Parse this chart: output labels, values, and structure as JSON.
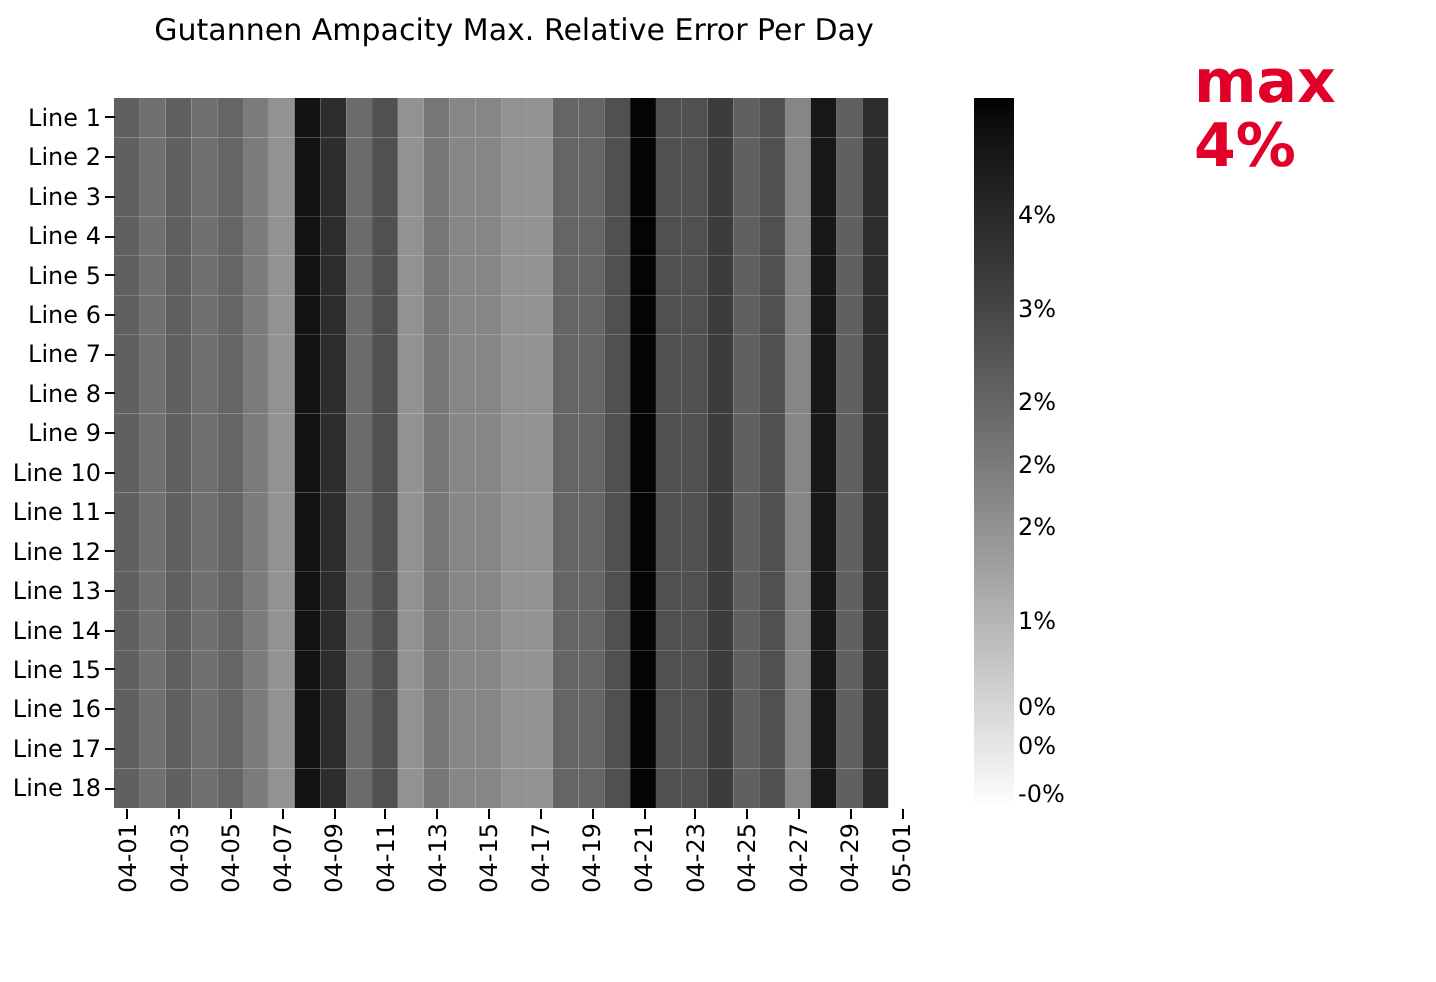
{
  "chart_data": {
    "type": "heatmap",
    "title": "Gutannen Ampacity Max. Relative Error Per Day",
    "categories": [
      "04-01",
      null,
      "04-03",
      null,
      "04-05",
      null,
      "04-07",
      null,
      "04-09",
      null,
      "04-11",
      null,
      "04-13",
      null,
      "04-15",
      null,
      "04-17",
      null,
      "04-19",
      null,
      "04-21",
      null,
      "04-23",
      null,
      "04-25",
      null,
      "04-27",
      null,
      "04-29",
      null,
      "05-01"
    ],
    "y_categories": [
      "Line 1",
      "Line 2",
      "Line 3",
      "Line 4",
      "Line 5",
      "Line 6",
      "Line 7",
      "Line 8",
      "Line 9",
      "Line 10",
      "Line 11",
      "Line 12",
      "Line 13",
      "Line 14",
      "Line 15",
      "Line 16",
      "Line 17",
      "Line 18"
    ],
    "cells": [
      [
        2.5,
        2.2,
        2.5,
        2.2,
        2.4,
        2.0,
        1.6,
        4.1,
        3.5,
        2.3,
        2.8,
        1.6,
        2.1,
        1.8,
        1.8,
        1.6,
        1.6,
        2.4,
        2.4,
        2.8,
        4.3,
        2.8,
        2.8,
        3.2,
        2.5,
        2.8,
        1.8,
        4.0,
        2.5,
        3.5,
        null
      ],
      [
        2.5,
        2.2,
        2.5,
        2.2,
        2.4,
        2.0,
        1.6,
        4.1,
        3.5,
        2.3,
        2.8,
        1.6,
        2.1,
        1.8,
        1.8,
        1.6,
        1.6,
        2.4,
        2.4,
        2.8,
        4.3,
        2.8,
        2.8,
        3.2,
        2.5,
        2.8,
        1.8,
        4.0,
        2.5,
        3.5,
        null
      ],
      [
        2.5,
        2.2,
        2.5,
        2.2,
        2.4,
        2.0,
        1.6,
        4.1,
        3.5,
        2.3,
        2.8,
        1.6,
        2.1,
        1.8,
        1.8,
        1.6,
        1.6,
        2.4,
        2.4,
        2.8,
        4.3,
        2.8,
        2.8,
        3.2,
        2.5,
        2.8,
        1.8,
        4.0,
        2.5,
        3.5,
        null
      ],
      [
        2.5,
        2.2,
        2.5,
        2.2,
        2.4,
        2.0,
        1.6,
        4.1,
        3.5,
        2.3,
        2.8,
        1.6,
        2.1,
        1.8,
        1.8,
        1.6,
        1.6,
        2.4,
        2.4,
        2.8,
        4.3,
        2.8,
        2.8,
        3.2,
        2.5,
        2.8,
        1.8,
        4.0,
        2.5,
        3.5,
        null
      ],
      [
        2.5,
        2.2,
        2.5,
        2.2,
        2.4,
        2.0,
        1.6,
        4.1,
        3.5,
        2.3,
        2.8,
        1.6,
        2.1,
        1.8,
        1.8,
        1.6,
        1.6,
        2.4,
        2.4,
        2.8,
        4.3,
        2.8,
        2.8,
        3.2,
        2.5,
        2.8,
        1.8,
        4.0,
        2.5,
        3.5,
        null
      ],
      [
        2.5,
        2.2,
        2.5,
        2.2,
        2.4,
        2.0,
        1.6,
        4.1,
        3.5,
        2.3,
        2.8,
        1.6,
        2.1,
        1.8,
        1.8,
        1.6,
        1.6,
        2.4,
        2.4,
        2.8,
        4.3,
        2.8,
        2.8,
        3.2,
        2.5,
        2.8,
        1.8,
        4.0,
        2.5,
        3.5,
        null
      ],
      [
        2.5,
        2.2,
        2.5,
        2.2,
        2.4,
        2.0,
        1.6,
        4.1,
        3.5,
        2.3,
        2.8,
        1.6,
        2.1,
        1.8,
        1.8,
        1.6,
        1.6,
        2.4,
        2.4,
        2.8,
        4.3,
        2.8,
        2.8,
        3.2,
        2.5,
        2.8,
        1.8,
        4.0,
        2.5,
        3.5,
        null
      ],
      [
        2.5,
        2.2,
        2.5,
        2.2,
        2.4,
        2.0,
        1.6,
        4.1,
        3.5,
        2.3,
        2.8,
        1.6,
        2.1,
        1.8,
        1.8,
        1.6,
        1.6,
        2.4,
        2.4,
        2.8,
        4.3,
        2.8,
        2.8,
        3.2,
        2.5,
        2.8,
        1.8,
        4.0,
        2.5,
        3.5,
        null
      ],
      [
        2.5,
        2.2,
        2.5,
        2.2,
        2.4,
        2.0,
        1.6,
        4.1,
        3.5,
        2.3,
        2.8,
        1.6,
        2.1,
        1.8,
        1.8,
        1.6,
        1.6,
        2.4,
        2.4,
        2.8,
        4.3,
        2.8,
        2.8,
        3.2,
        2.5,
        2.8,
        1.8,
        4.0,
        2.5,
        3.5,
        null
      ],
      [
        2.5,
        2.2,
        2.5,
        2.2,
        2.4,
        2.0,
        1.6,
        4.1,
        3.5,
        2.3,
        2.8,
        1.6,
        2.1,
        1.8,
        1.8,
        1.6,
        1.6,
        2.4,
        2.4,
        2.8,
        4.3,
        2.8,
        2.8,
        3.2,
        2.5,
        2.8,
        1.8,
        4.0,
        2.5,
        3.5,
        null
      ],
      [
        2.5,
        2.2,
        2.5,
        2.2,
        2.4,
        2.0,
        1.6,
        4.1,
        3.5,
        2.3,
        2.8,
        1.6,
        2.1,
        1.8,
        1.8,
        1.6,
        1.6,
        2.4,
        2.4,
        2.8,
        4.3,
        2.8,
        2.8,
        3.2,
        2.5,
        2.8,
        1.8,
        4.0,
        2.5,
        3.5,
        null
      ],
      [
        2.5,
        2.2,
        2.5,
        2.2,
        2.4,
        2.0,
        1.6,
        4.1,
        3.5,
        2.3,
        2.8,
        1.6,
        2.1,
        1.8,
        1.8,
        1.6,
        1.6,
        2.4,
        2.4,
        2.8,
        4.3,
        2.8,
        2.8,
        3.2,
        2.5,
        2.8,
        1.8,
        4.0,
        2.5,
        3.5,
        null
      ],
      [
        2.5,
        2.2,
        2.5,
        2.2,
        2.4,
        2.0,
        1.6,
        4.1,
        3.5,
        2.3,
        2.8,
        1.6,
        2.1,
        1.8,
        1.8,
        1.6,
        1.6,
        2.4,
        2.4,
        2.8,
        4.3,
        2.8,
        2.8,
        3.2,
        2.5,
        2.8,
        1.8,
        4.0,
        2.5,
        3.5,
        null
      ],
      [
        2.5,
        2.2,
        2.5,
        2.2,
        2.4,
        2.0,
        1.6,
        4.1,
        3.5,
        2.3,
        2.8,
        1.6,
        2.1,
        1.8,
        1.8,
        1.6,
        1.6,
        2.4,
        2.4,
        2.8,
        4.3,
        2.8,
        2.8,
        3.2,
        2.5,
        2.8,
        1.8,
        4.0,
        2.5,
        3.5,
        null
      ],
      [
        2.5,
        2.2,
        2.5,
        2.2,
        2.4,
        2.0,
        1.6,
        4.1,
        3.5,
        2.3,
        2.8,
        1.6,
        2.1,
        1.8,
        1.8,
        1.6,
        1.6,
        2.4,
        2.4,
        2.8,
        4.3,
        2.8,
        2.8,
        3.2,
        2.5,
        2.8,
        1.8,
        4.0,
        2.5,
        3.5,
        null
      ],
      [
        2.5,
        2.2,
        2.5,
        2.2,
        2.4,
        2.0,
        1.6,
        4.1,
        3.5,
        2.3,
        2.8,
        1.6,
        2.1,
        1.8,
        1.8,
        1.6,
        1.6,
        2.4,
        2.4,
        2.8,
        4.3,
        2.8,
        2.8,
        3.2,
        2.5,
        2.8,
        1.8,
        4.0,
        2.5,
        3.5,
        null
      ],
      [
        2.5,
        2.2,
        2.5,
        2.2,
        2.4,
        2.0,
        1.6,
        4.1,
        3.5,
        2.3,
        2.8,
        1.6,
        2.1,
        1.8,
        1.8,
        1.6,
        1.6,
        2.4,
        2.4,
        2.8,
        4.3,
        2.8,
        2.8,
        3.2,
        2.5,
        2.8,
        1.8,
        4.0,
        2.5,
        3.5,
        null
      ],
      [
        2.5,
        2.2,
        2.5,
        2.2,
        2.4,
        2.0,
        1.6,
        4.1,
        3.5,
        2.3,
        2.8,
        1.6,
        2.1,
        1.8,
        1.8,
        1.6,
        1.6,
        2.4,
        2.4,
        2.8,
        4.3,
        2.8,
        2.8,
        3.2,
        2.5,
        2.8,
        1.8,
        4.0,
        2.5,
        3.5,
        null
      ]
    ],
    "clim": [
      -0.2,
      4.35
    ],
    "cticks": [
      {
        "value": -0.2,
        "label": "-0%"
      },
      {
        "value": 0.2,
        "label": "0%"
      },
      {
        "value": 0.45,
        "label": "0%"
      },
      {
        "value": 1.0,
        "label": "1%"
      },
      {
        "value": 1.6,
        "label": "2%"
      },
      {
        "value": 2.0,
        "label": "2%"
      },
      {
        "value": 2.4,
        "label": "2%"
      },
      {
        "value": 3.0,
        "label": "3%"
      },
      {
        "value": 3.6,
        "label": "4%"
      }
    ],
    "annotations": [
      "max 4%"
    ]
  }
}
